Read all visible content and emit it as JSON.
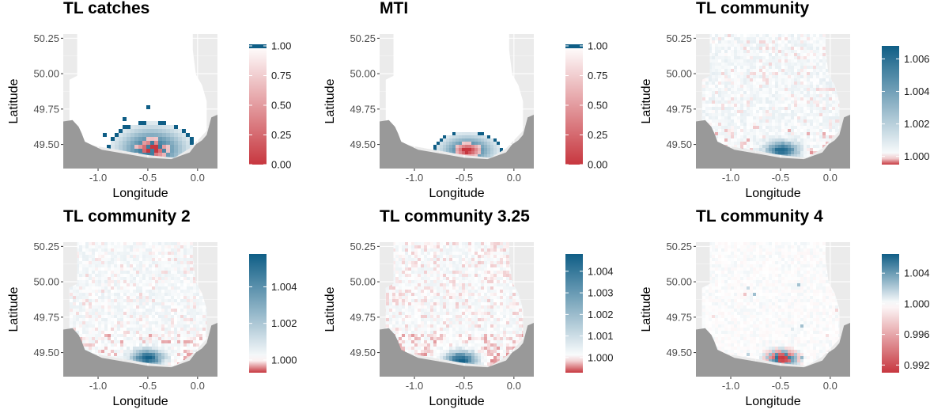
{
  "chart_data": [
    {
      "type": "heatmap",
      "title": "TL catches",
      "xlabel": "Longitude",
      "ylabel": "Latitude",
      "xlim": [
        -1.35,
        0.2
      ],
      "ylim": [
        49.33,
        50.28
      ],
      "xticks": [
        "-1.0",
        "-0.5",
        "0.0"
      ],
      "yticks": [
        "50.25",
        "50.00",
        "49.75",
        "49.50"
      ],
      "legend": {
        "min": 0.0,
        "max": 1.0,
        "labels": [
          "1.00",
          "0.75",
          "0.50",
          "0.25",
          "0.00"
        ],
        "placement": "right"
      },
      "hotspot": {
        "lon": -0.48,
        "lat": 49.48,
        "peak": 0.0,
        "spread": "wide-blocky"
      },
      "background_value": 1.0
    },
    {
      "type": "heatmap",
      "title": "MTI",
      "xlabel": "Longitude",
      "ylabel": "Latitude",
      "xlim": [
        -1.35,
        0.2
      ],
      "ylim": [
        49.33,
        50.28
      ],
      "xticks": [
        "-1.0",
        "-0.5",
        "0.0"
      ],
      "yticks": [
        "50.25",
        "50.00",
        "49.75",
        "49.50"
      ],
      "legend": {
        "min": 0.0,
        "max": 1.0,
        "labels": [
          "1.00",
          "0.75",
          "0.50",
          "0.25",
          "0.00"
        ],
        "placement": "right"
      },
      "hotspot": {
        "lon": -0.48,
        "lat": 49.47,
        "peak": 0.0,
        "spread": "compact"
      },
      "background_value": 1.0
    },
    {
      "type": "heatmap",
      "title": "TL community",
      "xlabel": "Longitude",
      "ylabel": "Latitude",
      "xlim": [
        -1.35,
        0.2
      ],
      "ylim": [
        49.33,
        50.28
      ],
      "xticks": [
        "-1.0",
        "-0.5",
        "0.0"
      ],
      "yticks": [
        "50.25",
        "50.00",
        "49.75",
        "49.50"
      ],
      "legend": {
        "min": 0.9995,
        "max": 1.0068,
        "labels": [
          "1.006",
          "1.004",
          "1.002",
          "1.000"
        ],
        "placement": "right"
      },
      "hotspot": {
        "lon": -0.5,
        "lat": 49.47,
        "peak": 1.0068,
        "spread": "medium"
      },
      "background_value": 1.0003
    },
    {
      "type": "heatmap",
      "title": "TL community 2",
      "xlabel": "Longitude",
      "ylabel": "Latitude",
      "xlim": [
        -1.35,
        0.2
      ],
      "ylim": [
        49.33,
        50.28
      ],
      "xticks": [
        "-1.0",
        "-0.5",
        "0.0"
      ],
      "yticks": [
        "50.25",
        "50.00",
        "49.75",
        "49.50"
      ],
      "legend": {
        "min": 0.9993,
        "max": 1.0058,
        "labels": [
          "1.004",
          "1.002",
          "1.000"
        ],
        "placement": "right"
      },
      "hotspot": {
        "lon": -0.52,
        "lat": 49.47,
        "peak": 1.0058,
        "spread": "medium"
      },
      "background_value": 1.0002
    },
    {
      "type": "heatmap",
      "title": "TL community 3.25",
      "xlabel": "Longitude",
      "ylabel": "Latitude",
      "xlim": [
        -1.35,
        0.2
      ],
      "ylim": [
        49.33,
        50.28
      ],
      "xticks": [
        "-1.0",
        "-0.5",
        "0.0"
      ],
      "yticks": [
        "50.25",
        "50.00",
        "49.75",
        "49.50"
      ],
      "legend": {
        "min": 0.9993,
        "max": 1.0048,
        "labels": [
          "1.004",
          "1.003",
          "1.002",
          "1.001",
          "1.000"
        ],
        "placement": "right"
      },
      "hotspot": {
        "lon": -0.55,
        "lat": 49.46,
        "peak": 1.0048,
        "spread": "medium"
      },
      "background_value": 1.0001
    },
    {
      "type": "heatmap",
      "title": "TL community 4",
      "xlabel": "Longitude",
      "ylabel": "Latitude",
      "xlim": [
        -1.35,
        0.2
      ],
      "ylim": [
        49.33,
        50.28
      ],
      "xticks": [
        "-1.0",
        "-0.5",
        "0.0"
      ],
      "yticks": [
        "50.25",
        "50.00",
        "49.75",
        "49.50"
      ],
      "legend": {
        "min": 0.991,
        "max": 1.0065,
        "labels": [
          "1.004",
          "1.000",
          "0.996",
          "0.992"
        ],
        "placement": "right"
      },
      "hotspot": {
        "lon": -0.5,
        "lat": 49.47,
        "peak": 1.0065,
        "spread": "noisy"
      },
      "background_value": 1.0
    }
  ],
  "colors": {
    "low": "#c7373f",
    "mid": "#ffffff",
    "high": "#0f5e86",
    "land": "#999999",
    "panel_bg": "#ebebeb"
  }
}
